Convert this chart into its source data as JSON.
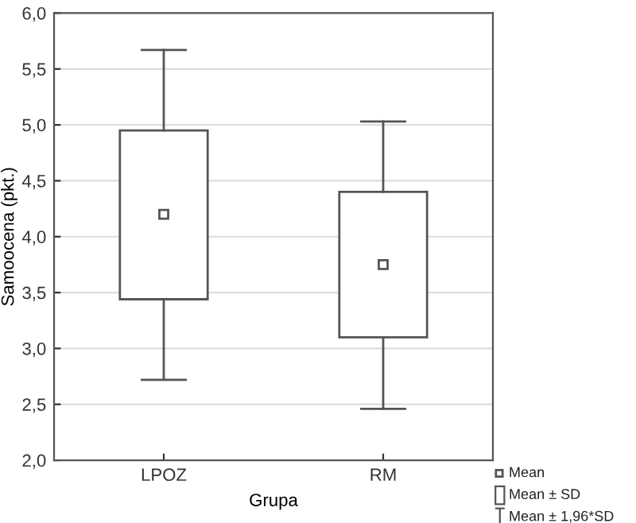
{
  "chart_data": {
    "type": "box",
    "xlabel": "Grupa",
    "ylabel": "Samoocena (pkt.)",
    "categories": [
      "LPOZ",
      "RM"
    ],
    "boxes": [
      {
        "low": 2.72,
        "q1": 3.44,
        "median": null,
        "q3": 4.95,
        "high": 5.67,
        "mean": 4.2
      },
      {
        "low": 2.46,
        "q1": 3.1,
        "median": null,
        "q3": 4.4,
        "high": 5.03,
        "mean": 3.75
      }
    ],
    "color": "#555555",
    "ylim": [
      2.0,
      6.0
    ],
    "yticks": [
      {
        "value": 2.0,
        "label": "2,0"
      },
      {
        "value": 2.5,
        "label": "2,5"
      },
      {
        "value": 3.0,
        "label": "3,0"
      },
      {
        "value": 3.5,
        "label": "3,5"
      },
      {
        "value": 4.0,
        "label": "4,0"
      },
      {
        "value": 4.5,
        "label": "4,5"
      },
      {
        "value": 5.0,
        "label": "5,0"
      },
      {
        "value": 5.5,
        "label": "5,5"
      },
      {
        "value": 6.0,
        "label": "6,0"
      }
    ],
    "grid": "y",
    "annotations": [
      "Mean",
      "Mean ± SD",
      "Mean ± 1,96*SD"
    ]
  }
}
